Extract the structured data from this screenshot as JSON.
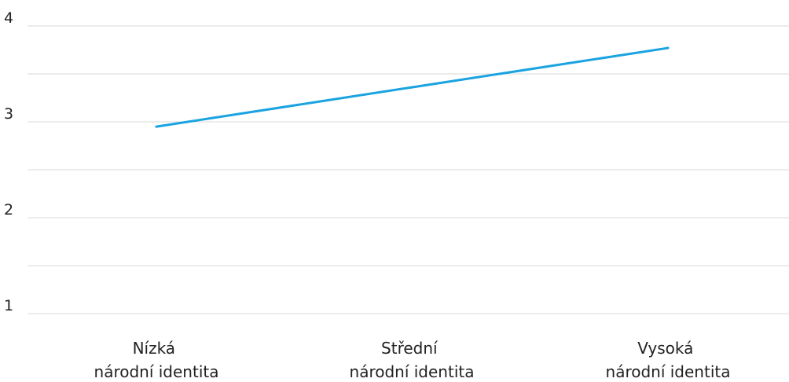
{
  "chart_data": {
    "type": "line",
    "categories": [
      [
        "Nízká",
        "národní identita"
      ],
      [
        "Střední",
        "národní identita"
      ],
      [
        "Vysoká",
        "národní identita"
      ]
    ],
    "series": [
      {
        "values": [
          2.95,
          3.36,
          3.77
        ],
        "color": "#1aa3e0"
      }
    ],
    "ylim": [
      1,
      4
    ],
    "yticks": [
      "1",
      "2",
      "3",
      "4"
    ],
    "grid_step": 0.5,
    "grid": true,
    "legend": "none",
    "title": "",
    "xlabel": "",
    "ylabel": ""
  }
}
